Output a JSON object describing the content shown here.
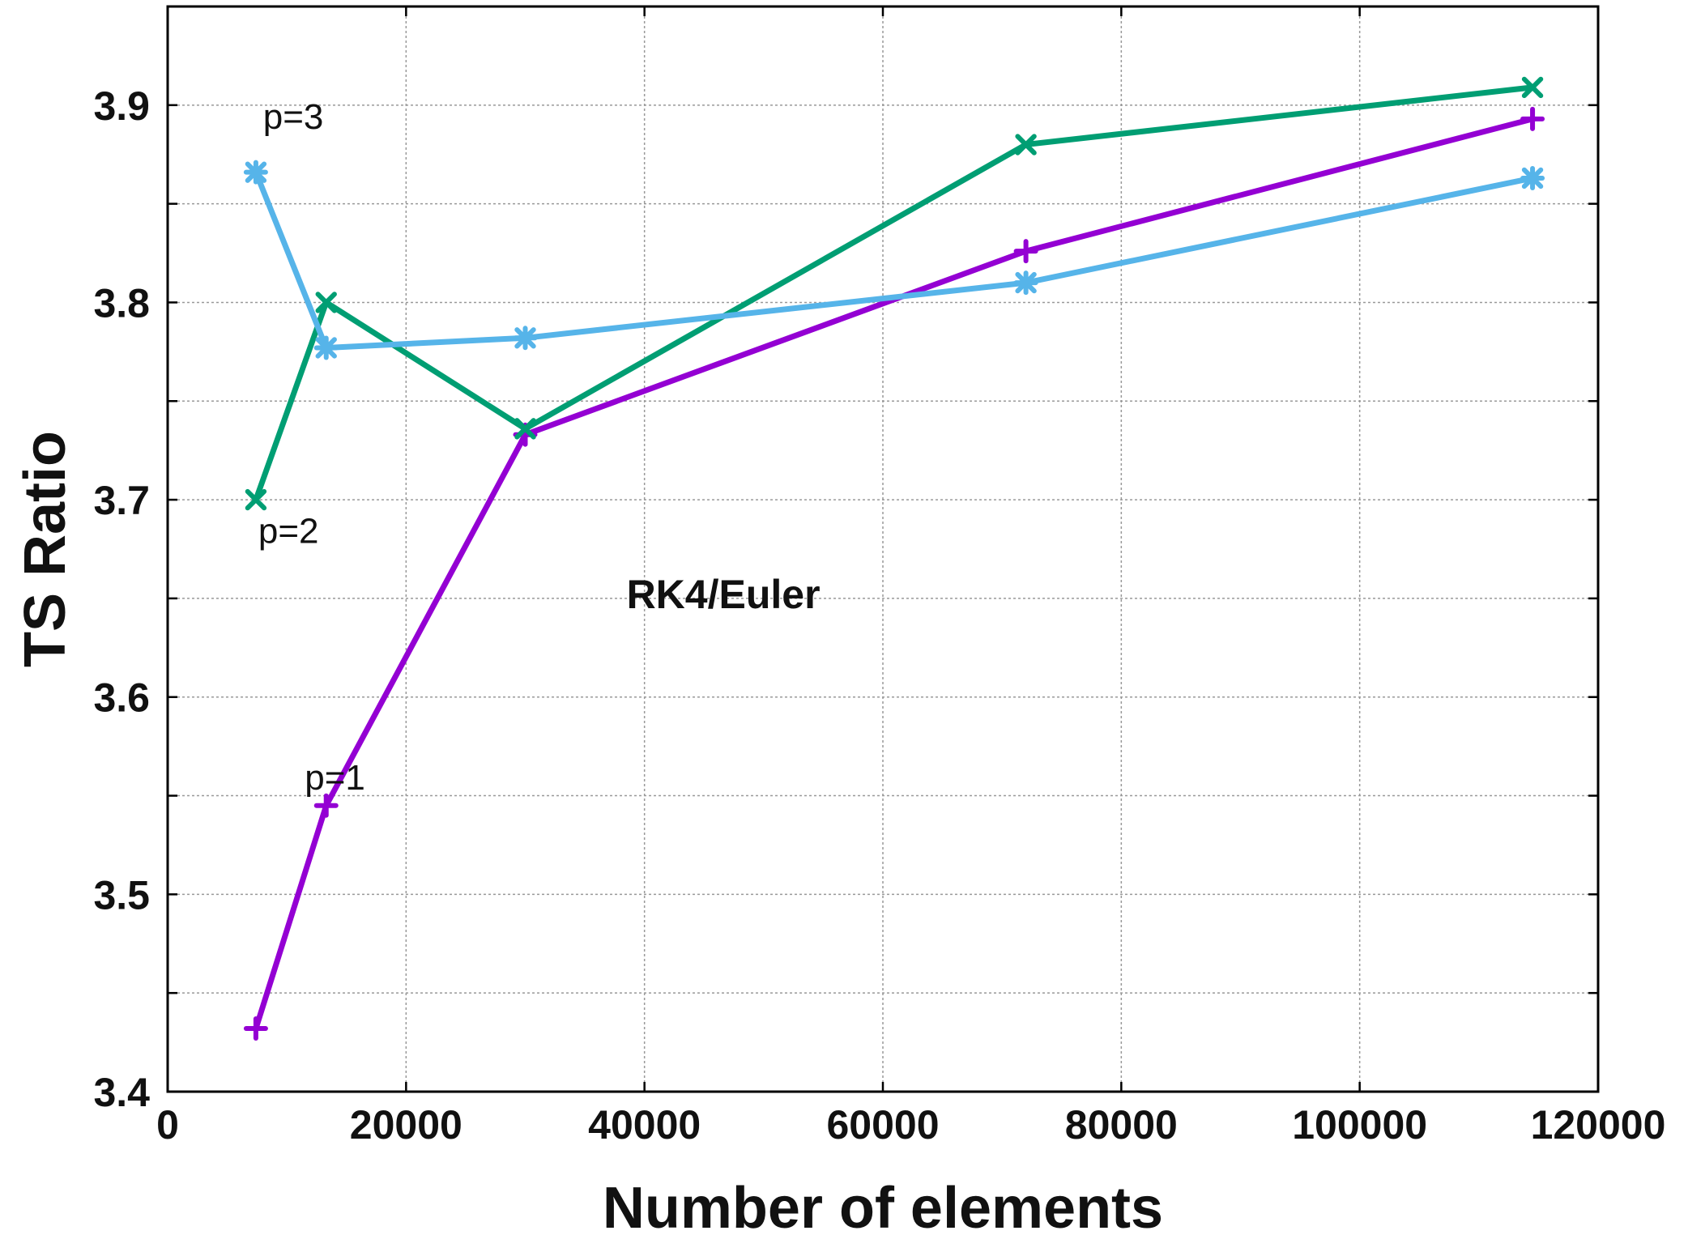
{
  "chart_data": {
    "type": "line",
    "xlabel": "Number of elements",
    "ylabel": "TS Ratio",
    "xlim": [
      0,
      120000
    ],
    "ylim": [
      3.4,
      3.95
    ],
    "xticks": [
      0,
      20000,
      40000,
      60000,
      80000,
      100000,
      120000
    ],
    "xtick_labels": [
      "0",
      "20000",
      "40000",
      "60000",
      "80000",
      "100000",
      "120000"
    ],
    "yticks": [
      3.4,
      3.5,
      3.6,
      3.7,
      3.8,
      3.9
    ],
    "ytick_labels": [
      "3.4",
      "3.5",
      "3.6",
      "3.7",
      "3.8",
      "3.9"
    ],
    "grid": true,
    "series": [
      {
        "name": "p=1",
        "color": "#9400D3",
        "marker": "plus",
        "x": [
          7400,
          13300,
          30000,
          72000,
          114500
        ],
        "y": [
          3.432,
          3.545,
          3.733,
          3.826,
          3.893
        ]
      },
      {
        "name": "p=2",
        "color": "#009E73",
        "marker": "x",
        "x": [
          7400,
          13300,
          30000,
          72000,
          114500
        ],
        "y": [
          3.7,
          3.8,
          3.736,
          3.88,
          3.909
        ]
      },
      {
        "name": "p=3",
        "color": "#56B4E9",
        "marker": "star",
        "x": [
          7400,
          13300,
          30000,
          72000,
          114500
        ],
        "y": [
          3.866,
          3.777,
          3.782,
          3.81,
          3.863
        ]
      }
    ],
    "annotations": [
      {
        "text": "p=3",
        "x": 8000,
        "y": 3.888
      },
      {
        "text": "p=2",
        "x": 7600,
        "y": 3.678
      },
      {
        "text": "p=1",
        "x": 11500,
        "y": 3.553
      },
      {
        "text": "RK4/Euler",
        "x": 38500,
        "y": 3.645,
        "bold": true
      }
    ]
  }
}
